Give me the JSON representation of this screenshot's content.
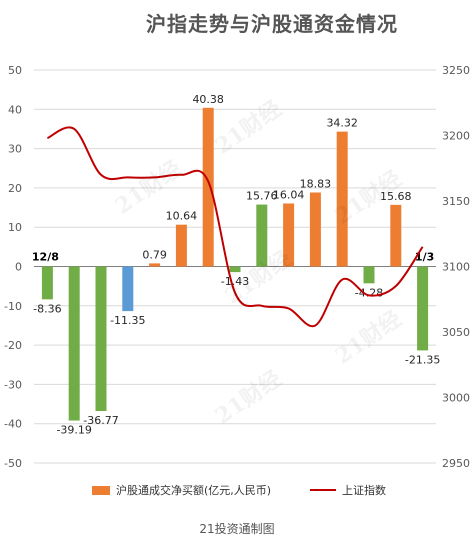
{
  "title": "沪指走势与沪股通资金情况",
  "footer": "21投资通制图",
  "watermark": "21财经",
  "legend": {
    "bar_label": "沪股通成交净买额(亿元,人民币)",
    "line_label": "上证指数"
  },
  "colors": {
    "positive": "#ED7D31",
    "negative": "#70AD47",
    "highlight_negative": "#5B9BD5",
    "line": "#C00000",
    "grid": "#D9D9D9",
    "axis_text": "#595959"
  },
  "chart_data": {
    "type": "bar",
    "title": "沪指走势与沪股通资金情况",
    "first_date_label": "12/8",
    "last_date_label": "1/3",
    "left_axis": {
      "min": -50,
      "max": 50,
      "ticks": [
        "50",
        "40",
        "30",
        "20",
        "10",
        "0",
        "-10",
        "-20",
        "-30",
        "-40",
        "-50"
      ]
    },
    "right_axis": {
      "min": 2950,
      "max": 3250,
      "ticks": [
        "3250",
        "3200",
        "3150",
        "3100",
        "3050",
        "3000",
        "2950"
      ]
    },
    "series": [
      {
        "name": "沪股通成交净买额(亿元,人民币)",
        "values": [
          -8.36,
          -39.19,
          -36.77,
          -11.35,
          0.79,
          10.64,
          40.38,
          -1.43,
          15.76,
          16.04,
          18.83,
          34.32,
          -4.28,
          15.68,
          -21.35
        ],
        "labels": [
          "-8.36",
          "-39.19",
          "-36.77",
          "-11.35",
          "0.79",
          "10.64",
          "40.38",
          "-1.43",
          "15.76",
          "16.04",
          "18.83",
          "34.32",
          "-4.28",
          "15.68",
          "-21.35"
        ],
        "bar_colors": [
          "negative",
          "negative",
          "negative",
          "highlight_negative",
          "positive",
          "positive",
          "positive",
          "negative",
          "negative",
          "positive",
          "positive",
          "positive",
          "negative",
          "positive",
          "negative"
        ]
      },
      {
        "name": "上证指数",
        "axis": "right",
        "x": [
          0,
          1,
          2,
          3,
          4,
          5,
          6,
          7,
          8,
          9,
          10,
          11,
          12,
          13,
          14
        ],
        "values": [
          3198,
          3205,
          3170,
          3168,
          3168,
          3170,
          3165,
          3080,
          3070,
          3068,
          3055,
          3090,
          3078,
          3085,
          3115
        ]
      }
    ],
    "legend_position": "bottom",
    "grid": true
  }
}
